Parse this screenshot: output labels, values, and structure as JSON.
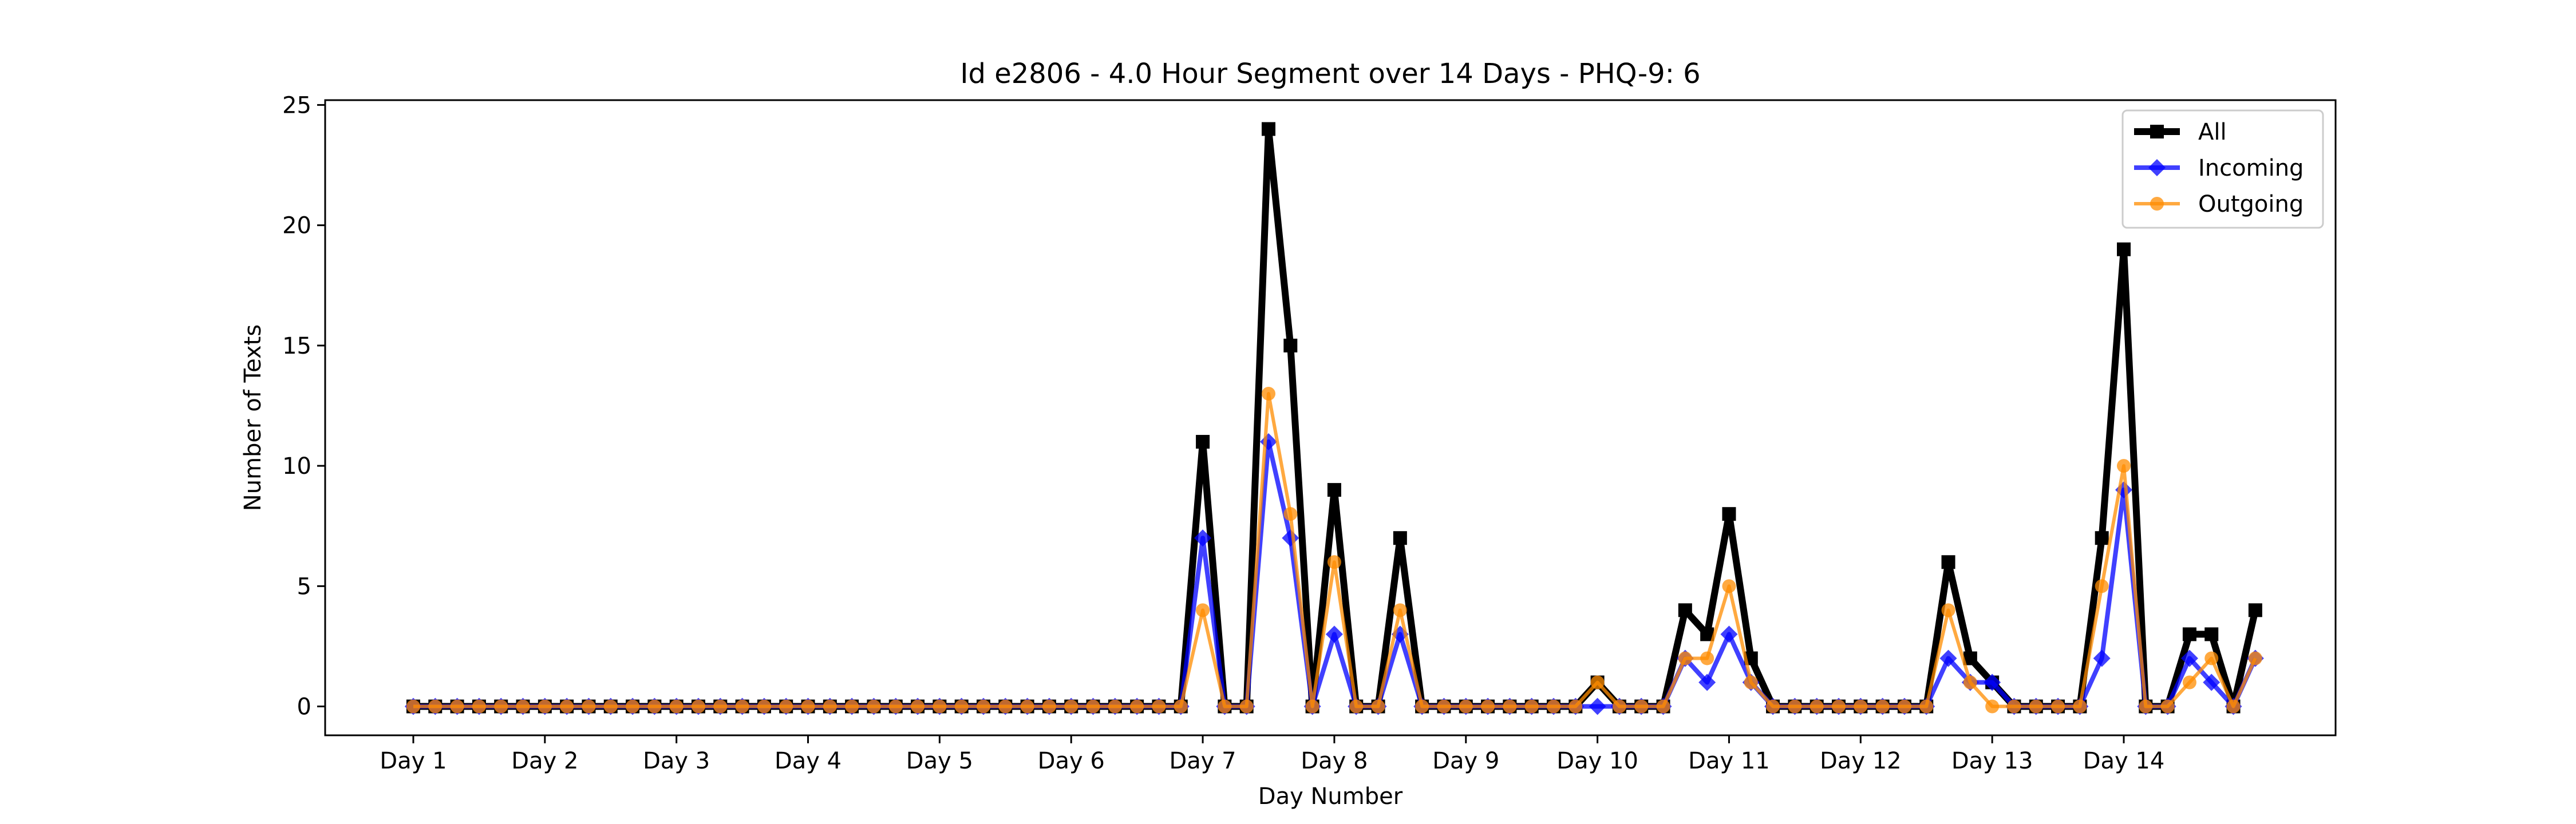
{
  "chart_data": {
    "type": "line",
    "title": "Id e2806 - 4.0 Hour Segment over 14 Days - PHQ-9: 6",
    "xlabel": "Day Number",
    "ylabel": "Number of Texts",
    "ylim": [
      -1.2,
      25.2
    ],
    "yticks": [
      0,
      5,
      10,
      15,
      20,
      25
    ],
    "xtick_labels": [
      "Day 1",
      "Day 2",
      "Day 3",
      "Day 4",
      "Day 5",
      "Day 6",
      "Day 7",
      "Day 8",
      "Day 9",
      "Day 10",
      "Day 11",
      "Day 12",
      "Day 13",
      "Day 14"
    ],
    "points_per_day": 6,
    "legend_position": "upper right",
    "grid": false,
    "series": [
      {
        "name": "All",
        "color": "#000000",
        "marker": "square",
        "values": [
          0,
          0,
          0,
          0,
          0,
          0,
          0,
          0,
          0,
          0,
          0,
          0,
          0,
          0,
          0,
          0,
          0,
          0,
          0,
          0,
          0,
          0,
          0,
          0,
          0,
          0,
          0,
          0,
          0,
          0,
          0,
          0,
          0,
          0,
          0,
          0,
          11,
          0,
          0,
          24,
          15,
          0,
          9,
          0,
          0,
          7,
          0,
          0,
          0,
          0,
          0,
          0,
          0,
          0,
          1,
          0,
          0,
          0,
          4,
          3,
          8,
          2,
          0,
          0,
          0,
          0,
          0,
          0,
          0,
          0,
          6,
          2,
          1,
          0,
          0,
          0,
          0,
          7,
          19,
          0,
          0,
          3,
          3,
          0,
          4
        ]
      },
      {
        "name": "Incoming",
        "color": "#0000ff",
        "marker": "diamond",
        "values": [
          0,
          0,
          0,
          0,
          0,
          0,
          0,
          0,
          0,
          0,
          0,
          0,
          0,
          0,
          0,
          0,
          0,
          0,
          0,
          0,
          0,
          0,
          0,
          0,
          0,
          0,
          0,
          0,
          0,
          0,
          0,
          0,
          0,
          0,
          0,
          0,
          7,
          0,
          0,
          11,
          7,
          0,
          3,
          0,
          0,
          3,
          0,
          0,
          0,
          0,
          0,
          0,
          0,
          0,
          0,
          0,
          0,
          0,
          2,
          1,
          3,
          1,
          0,
          0,
          0,
          0,
          0,
          0,
          0,
          0,
          2,
          1,
          1,
          0,
          0,
          0,
          0,
          2,
          9,
          0,
          0,
          2,
          1,
          0,
          2
        ]
      },
      {
        "name": "Outgoing",
        "color": "#ff8c00",
        "marker": "circle",
        "values": [
          0,
          0,
          0,
          0,
          0,
          0,
          0,
          0,
          0,
          0,
          0,
          0,
          0,
          0,
          0,
          0,
          0,
          0,
          0,
          0,
          0,
          0,
          0,
          0,
          0,
          0,
          0,
          0,
          0,
          0,
          0,
          0,
          0,
          0,
          0,
          0,
          4,
          0,
          0,
          13,
          8,
          0,
          6,
          0,
          0,
          4,
          0,
          0,
          0,
          0,
          0,
          0,
          0,
          0,
          1,
          0,
          0,
          0,
          2,
          2,
          5,
          1,
          0,
          0,
          0,
          0,
          0,
          0,
          0,
          0,
          4,
          1,
          0,
          0,
          0,
          0,
          0,
          5,
          10,
          0,
          0,
          1,
          2,
          0,
          2
        ]
      }
    ]
  }
}
